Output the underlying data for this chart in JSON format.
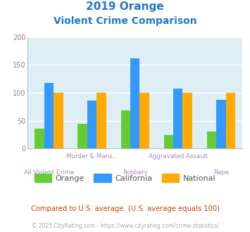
{
  "title_line1": "2019 Orange",
  "title_line2": "Violent Crime Comparison",
  "title_color": "#2277cc",
  "categories": [
    "All Violent Crime",
    "Murder & Mans...",
    "Robbery",
    "Aggravated Assault",
    "Rape"
  ],
  "orange_values": [
    35,
    45,
    68,
    24,
    31
  ],
  "california_values": [
    118,
    86,
    162,
    107,
    87
  ],
  "national_values": [
    100,
    100,
    100,
    100,
    100
  ],
  "orange_color": "#66cc33",
  "california_color": "#3399ff",
  "national_color": "#ffaa00",
  "ylim": [
    0,
    200
  ],
  "yticks": [
    0,
    50,
    100,
    150,
    200
  ],
  "plot_bg": "#ddeef5",
  "legend_labels": [
    "Orange",
    "California",
    "National"
  ],
  "footnote1": "Compared to U.S. average. (U.S. average equals 100)",
  "footnote1_color": "#cc4400",
  "footnote2": "© 2025 CityRating.com - https://www.cityrating.com/crime-statistics/",
  "footnote2_color": "#aaaaaa",
  "bar_width": 0.22
}
